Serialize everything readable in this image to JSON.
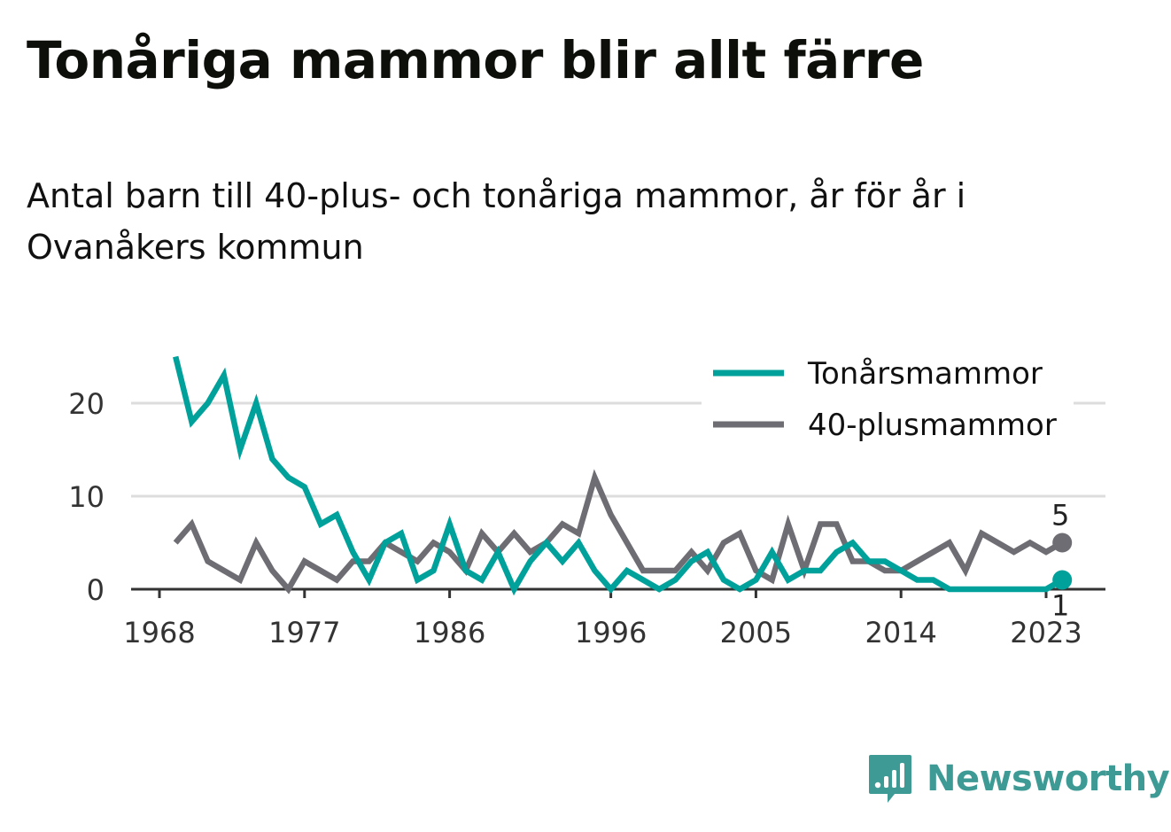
{
  "title": "Tonåriga mammor blir allt färre",
  "subtitle": "Antal barn till 40-plus- och tonåriga mammor, år för år i Ovanåkers kommun",
  "brand": "Newsworthy",
  "colors": {
    "teen": "#00a19a",
    "forty": "#6d6d73",
    "brand": "#3d9a94",
    "grid": "#dddddd"
  },
  "chart_data": {
    "type": "line",
    "x_ticks": [
      "1968",
      "1977",
      "1986",
      "1996",
      "2005",
      "2014",
      "2023"
    ],
    "y_ticks": [
      "0",
      "10",
      "20"
    ],
    "xlim": [
      1967,
      2026
    ],
    "ylim": [
      0,
      25
    ],
    "grid": true,
    "legend_position": "top-right",
    "x": [
      1969,
      1970,
      1971,
      1972,
      1973,
      1974,
      1975,
      1976,
      1977,
      1978,
      1979,
      1980,
      1981,
      1982,
      1983,
      1984,
      1985,
      1986,
      1987,
      1988,
      1989,
      1990,
      1991,
      1992,
      1993,
      1994,
      1995,
      1996,
      1997,
      1998,
      1999,
      2000,
      2001,
      2002,
      2003,
      2004,
      2005,
      2006,
      2007,
      2008,
      2009,
      2010,
      2011,
      2012,
      2013,
      2014,
      2015,
      2016,
      2017,
      2018,
      2019,
      2020,
      2021,
      2022,
      2023,
      2024
    ],
    "series": [
      {
        "name": "Tonårsmammor",
        "color": "#00a19a",
        "values": [
          25,
          18,
          20,
          23,
          15,
          20,
          14,
          12,
          11,
          7,
          8,
          4,
          1,
          5,
          6,
          1,
          2,
          7,
          2,
          1,
          4,
          0,
          3,
          5,
          3,
          5,
          2,
          0,
          2,
          1,
          0,
          1,
          3,
          4,
          1,
          0,
          1,
          4,
          1,
          2,
          2,
          4,
          5,
          3,
          3,
          2,
          1,
          1,
          0,
          0,
          0,
          0,
          0,
          0,
          0,
          1
        ],
        "end_label": "1"
      },
      {
        "name": "40-plusmammor",
        "color": "#6d6d73",
        "values": [
          5,
          7,
          3,
          2,
          1,
          5,
          2,
          0,
          3,
          2,
          1,
          3,
          3,
          5,
          4,
          3,
          5,
          4,
          2,
          6,
          4,
          6,
          4,
          5,
          7,
          6,
          12,
          8,
          5,
          2,
          2,
          2,
          4,
          2,
          5,
          6,
          2,
          1,
          7,
          2,
          7,
          7,
          3,
          3,
          2,
          2,
          3,
          4,
          5,
          2,
          6,
          5,
          4,
          5,
          4,
          5
        ],
        "end_label": "5"
      }
    ]
  }
}
